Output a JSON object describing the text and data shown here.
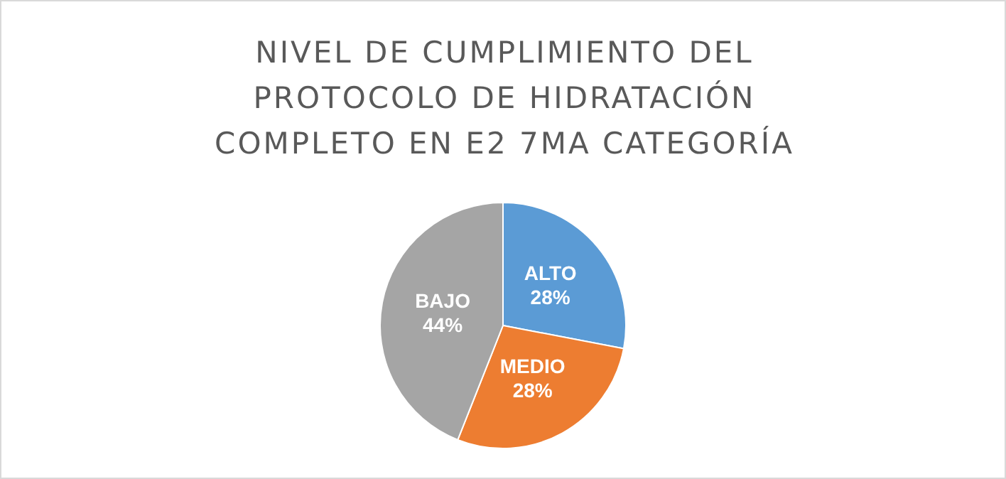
{
  "chart_data": {
    "type": "pie",
    "title": "NIVEL DE CUMPLIMIENTO DEL PROTOCOLO DE HIDRATACIÓN COMPLETO EN E2 7MA CATEGORÍA",
    "categories": [
      "ALTO",
      "MEDIO",
      "BAJO"
    ],
    "values": [
      28,
      28,
      44
    ],
    "colors": [
      "#5b9bd5",
      "#ed7d31",
      "#a5a5a5"
    ],
    "value_labels": [
      "28%",
      "28%",
      "44%"
    ]
  }
}
